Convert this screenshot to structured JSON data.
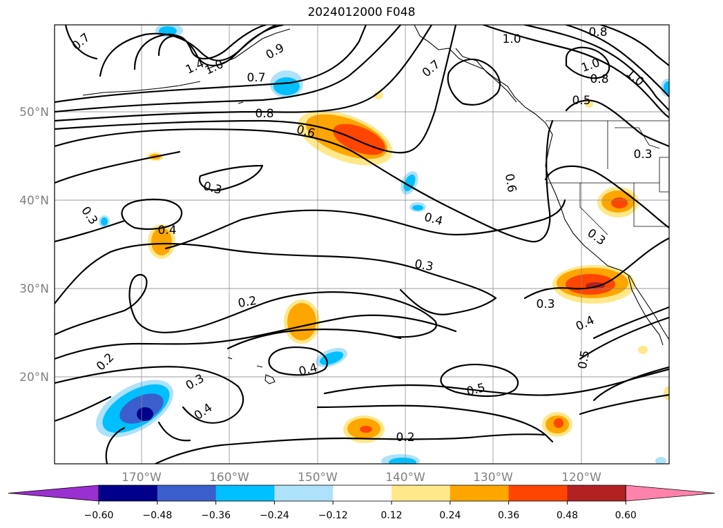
{
  "title": "2024012000 F048",
  "lat_labels": [
    "50°N",
    "40°N",
    "30°N",
    "20°N"
  ],
  "lon_labels": [
    "170°W",
    "160°W",
    "150°W",
    "140°W",
    "130°W",
    "120°W"
  ],
  "contour_labels": [
    "0.7",
    "1.4",
    "1.0",
    "0.9",
    "0.7",
    "1.0",
    "0.8",
    "0.7",
    "1.0",
    "0.8",
    "0.5",
    "1.0",
    "0.8",
    "0.6",
    "0.3",
    "0.3",
    "0.3",
    "0.4",
    "0.6",
    "0.4",
    "0.3",
    "0.3",
    "0.3",
    "0.2",
    "0.4",
    "0.2",
    "0.3",
    "0.4",
    "0.5",
    "0.4",
    "0.5",
    "0.2"
  ],
  "colorbar": {
    "tick_labels": [
      "−0.60",
      "−0.48",
      "−0.36",
      "−0.24",
      "−0.12",
      "0.12",
      "0.24",
      "0.36",
      "0.48",
      "0.60"
    ],
    "colors": [
      "#9b30d0",
      "#00008b",
      "#3a5fcd",
      "#00bfff",
      "#ade2fa",
      "#ffffff",
      "#ffe88a",
      "#ffa500",
      "#ff4500",
      "#b22222",
      "#ff82ab"
    ]
  }
}
